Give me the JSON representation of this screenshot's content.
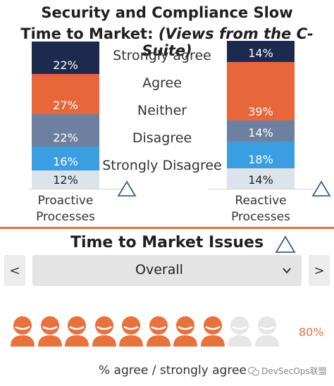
{
  "header": {
    "title_line1": "Security and Compliance Slow",
    "title_line2_prefix": "Time to Market: ",
    "title_line2_italic": "(Views from the C-Suite)"
  },
  "legend": [
    "Strongly agree",
    "Agree",
    "Neither",
    "Disagree",
    "Strongly Disagree"
  ],
  "colors": {
    "strongly_agree": "#1c2a4d",
    "agree": "#e8673a",
    "neither": "#6e80a0",
    "disagree": "#3b9ee0",
    "strongly_disagree": "#dde3ea",
    "accent": "#e8713d"
  },
  "chart_data": {
    "type": "bar",
    "stacked": true,
    "categories": [
      "Proactive Processes",
      "Reactive Processes"
    ],
    "series": [
      {
        "name": "Strongly agree",
        "values": [
          22,
          14
        ]
      },
      {
        "name": "Agree",
        "values": [
          27,
          39
        ]
      },
      {
        "name": "Neither",
        "values": [
          22,
          14
        ]
      },
      {
        "name": "Disagree",
        "values": [
          16,
          18
        ]
      },
      {
        "name": "Strongly Disagree",
        "values": [
          12,
          14
        ]
      }
    ],
    "labels": {
      "proactive": [
        "22%",
        "27%",
        "22%",
        "16%",
        "12%"
      ],
      "reactive": [
        "14%",
        "39%",
        "14%",
        "18%",
        "14%"
      ]
    }
  },
  "bars": {
    "proactive_label_line1": "Proactive",
    "proactive_label_line2": "Processes",
    "reactive_label_line1": "Reactive",
    "reactive_label_line2": "Processes"
  },
  "issues": {
    "title": "Time to Market Issues",
    "dropdown_value": "Overall",
    "prev_label": "<",
    "next_label": ">",
    "agree_fraction": 0.8,
    "agree_percent_label": "80%",
    "people_total": 10,
    "people_filled": 8,
    "footer": "% agree / strongly agree"
  },
  "watermark": "DevSecOps联盟"
}
